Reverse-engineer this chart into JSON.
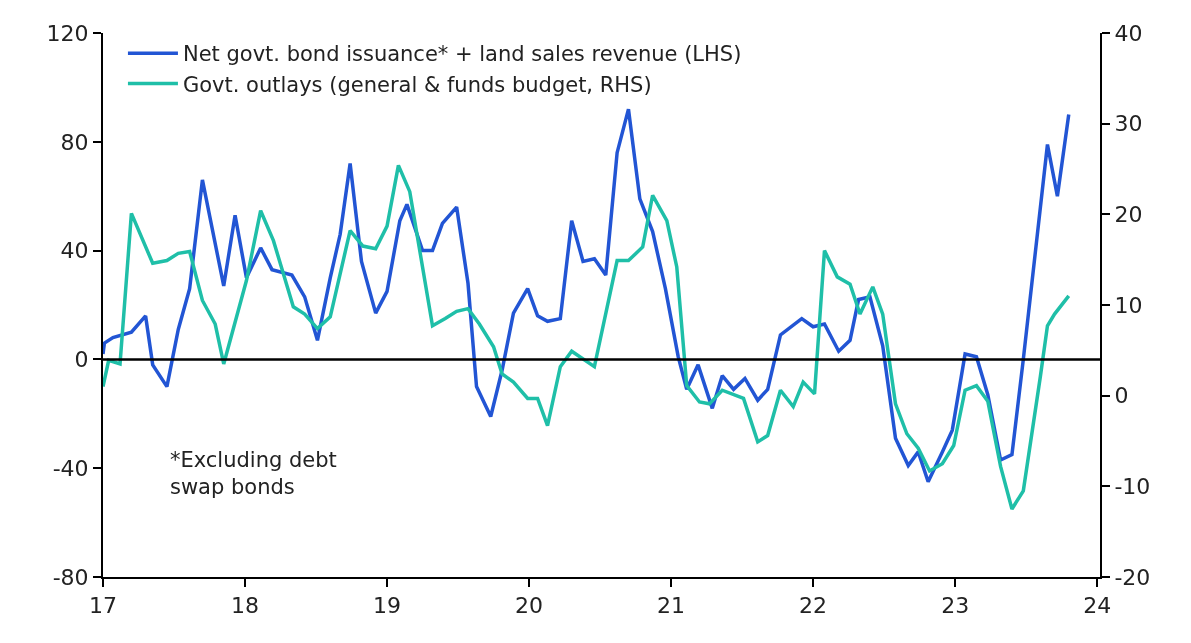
{
  "chart_data": {
    "type": "line",
    "series": [
      {
        "name": "Net govt. bond issuance* + land sales revenue (LHS)",
        "color": "#2255d4",
        "axis": "y",
        "x": [
          17.0,
          17.01,
          17.07,
          17.2,
          17.3,
          17.35,
          17.45,
          17.53,
          17.61,
          17.7,
          17.85,
          17.93,
          18.01,
          18.11,
          18.19,
          18.33,
          18.42,
          18.51,
          18.6,
          18.67,
          18.74,
          18.82,
          18.92,
          19.0,
          19.09,
          19.14,
          19.25,
          19.32,
          19.39,
          19.49,
          19.57,
          19.63,
          19.73,
          19.81,
          19.89,
          19.99,
          20.06,
          20.13,
          20.22,
          20.3,
          20.38,
          20.46,
          20.54,
          20.62,
          20.7,
          20.78,
          20.87,
          20.96,
          21.05,
          21.11,
          21.19,
          21.29,
          21.36,
          21.44,
          21.52,
          21.61,
          21.68,
          21.77,
          21.92,
          22.0,
          22.08,
          22.18,
          22.26,
          22.32,
          22.4,
          22.49,
          22.58,
          22.67,
          22.74,
          22.81,
          22.91,
          22.98,
          23.07,
          23.15,
          23.23,
          23.32,
          23.4,
          23.48,
          23.65,
          23.72,
          23.8
        ],
        "values": [
          2,
          6,
          8,
          10,
          16,
          -2,
          -10,
          11,
          26,
          66,
          27,
          53,
          30,
          41,
          33,
          31,
          23,
          7,
          30,
          46,
          72,
          36,
          17,
          25,
          51,
          57,
          40,
          40,
          50,
          56,
          28,
          -10,
          -21,
          -4,
          17,
          26,
          16,
          14,
          15,
          51,
          36,
          37,
          31,
          76,
          92,
          59,
          47,
          26,
          1,
          -11,
          -2,
          -18,
          -6,
          -11,
          -7,
          -15,
          -11,
          9,
          15,
          12,
          13,
          3,
          7,
          22,
          23,
          5,
          -29,
          -39,
          -34,
          -45,
          -34,
          -26,
          2,
          1,
          -13,
          -37,
          -35,
          0,
          79,
          60,
          90
        ]
      },
      {
        "name": "Govt. outlays (general & funds budget, RHS)",
        "color": "#1fbfa8",
        "axis": "y2",
        "x": [
          17.0,
          17.04,
          17.12,
          17.2,
          17.35,
          17.45,
          17.53,
          17.61,
          17.7,
          17.79,
          17.85,
          18.01,
          18.11,
          18.2,
          18.34,
          18.42,
          18.51,
          18.6,
          18.74,
          18.83,
          18.92,
          19.0,
          19.08,
          19.16,
          19.32,
          19.41,
          19.49,
          19.57,
          19.65,
          19.75,
          19.81,
          19.89,
          19.99,
          20.06,
          20.13,
          20.22,
          20.3,
          20.46,
          20.62,
          20.7,
          20.8,
          20.87,
          20.97,
          21.04,
          21.11,
          21.2,
          21.27,
          21.36,
          21.51,
          21.61,
          21.68,
          21.77,
          21.86,
          21.93,
          22.01,
          22.08,
          22.17,
          22.26,
          22.33,
          22.42,
          22.49,
          22.58,
          22.66,
          22.74,
          22.82,
          22.91,
          22.99,
          23.07,
          23.15,
          23.23,
          23.32,
          23.4,
          23.48,
          23.6,
          23.65,
          23.7,
          23.8
        ],
        "values": [
          1.0,
          3.9,
          3.5,
          20.1,
          14.6,
          14.9,
          15.7,
          15.9,
          10.5,
          7.9,
          3.5,
          12.7,
          20.4,
          17.1,
          9.8,
          9.0,
          7.4,
          8.7,
          18.2,
          16.5,
          16.2,
          18.7,
          25.4,
          22.5,
          7.7,
          8.5,
          9.3,
          9.6,
          7.9,
          5.4,
          2.4,
          1.5,
          -0.3,
          -0.3,
          -3.3,
          3.2,
          4.9,
          3.2,
          14.9,
          14.9,
          16.4,
          22.1,
          19.3,
          14.2,
          1.1,
          -0.7,
          -0.9,
          0.6,
          -0.3,
          -5.1,
          -4.4,
          0.6,
          -1.2,
          1.5,
          0.2,
          16.0,
          13.1,
          12.3,
          9.0,
          12.0,
          9.0,
          -0.9,
          -4.2,
          -5.8,
          -8.3,
          -7.5,
          -5.5,
          0.6,
          1.1,
          -0.6,
          -7.8,
          -12.5,
          -10.5,
          2.1,
          7.7,
          9.0,
          11.0
        ]
      }
    ],
    "xlim": [
      17,
      24.02
    ],
    "xticks": [
      17,
      18,
      19,
      20,
      21,
      22,
      23,
      24
    ],
    "ylim": [
      -80,
      120
    ],
    "yticks": [
      -80,
      -40,
      0,
      40,
      80,
      120
    ],
    "y2lim": [
      -20,
      40
    ],
    "y2ticks": [
      -20,
      -10,
      0,
      10,
      20,
      30,
      40
    ],
    "ref_lines": [
      {
        "axis": "y",
        "value": 0,
        "color": "#000000"
      }
    ],
    "annotations": [
      "*Excluding debt\nswap bonds"
    ],
    "legend": "top left",
    "marker": "none",
    "line_style": "solid"
  }
}
